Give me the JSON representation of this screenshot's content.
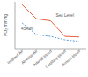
{
  "chart_data": {
    "type": "line",
    "y_label": "PO₂ mmHg",
    "categories": [
      "Inspired Air",
      "Alveolar Air",
      "Arterial blood",
      "Capillary blood",
      "Venous blood"
    ],
    "series": [
      {
        "name": "Sea Level",
        "color": "#e8603c",
        "line_style": "solid",
        "values": [
          150,
          102,
          95,
          42,
          40
        ]
      },
      {
        "name": "4540m",
        "color": "#5b9bd5",
        "line_style": "dashed",
        "values": [
          88,
          48,
          42,
          30,
          25
        ]
      }
    ],
    "ylim": [
      0,
      160
    ],
    "tick_labels": "x",
    "grid": false
  }
}
